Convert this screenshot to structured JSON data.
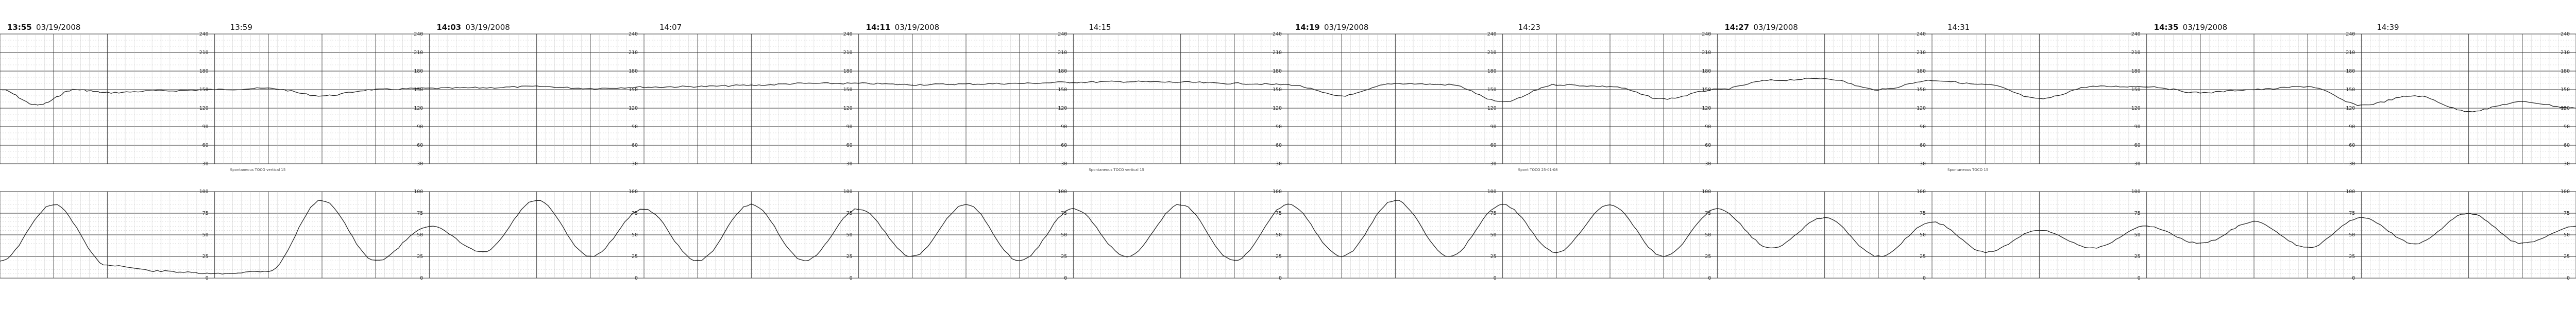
{
  "chart_data": [
    {
      "type": "line",
      "name_hint": "fetal-heart-rate",
      "ylim": [
        30,
        240
      ],
      "yticks": [
        "240",
        "210",
        "180",
        "150",
        "120",
        "90",
        "60",
        "30"
      ],
      "x_minutes": [
        0,
        0.7,
        1.4,
        2,
        3,
        4,
        5,
        6,
        7,
        8,
        9,
        10,
        11,
        12,
        13,
        14,
        15,
        16,
        17,
        18,
        19,
        20,
        21,
        22,
        23,
        24,
        25,
        26,
        27,
        28,
        29,
        30,
        31,
        32,
        33,
        34,
        35,
        36,
        37,
        38,
        39,
        40,
        41,
        42,
        43,
        44,
        45,
        46,
        47,
        48
      ],
      "values": [
        150,
        125,
        150,
        145,
        148,
        150,
        152,
        140,
        150,
        152,
        153,
        155,
        152,
        154,
        155,
        157,
        160,
        160,
        158,
        159,
        160,
        162,
        163,
        162,
        160,
        158,
        140,
        160,
        158,
        130,
        158,
        155,
        135,
        150,
        165,
        168,
        150,
        165,
        158,
        135,
        155,
        155,
        145,
        150,
        155,
        125,
        140,
        115,
        130,
        120
      ]
    },
    {
      "type": "line",
      "name_hint": "uterine-activity",
      "ylim": [
        0,
        100
      ],
      "yticks": [
        "100",
        "75",
        "50",
        "25",
        "0"
      ],
      "x_minutes": [
        0,
        1,
        2,
        3,
        4,
        5,
        6,
        7,
        8,
        9,
        10,
        11,
        12,
        13,
        14,
        15,
        16,
        17,
        18,
        19,
        20,
        21,
        22,
        23,
        24,
        25,
        26,
        27,
        28,
        29,
        30,
        31,
        32,
        33,
        34,
        35,
        36,
        37,
        38,
        39,
        40,
        41,
        42,
        43,
        44,
        45,
        46,
        47,
        48
      ],
      "values": [
        20,
        85,
        15,
        8,
        5,
        8,
        90,
        20,
        60,
        30,
        90,
        25,
        80,
        20,
        85,
        20,
        80,
        25,
        85,
        20,
        80,
        25,
        85,
        20,
        85,
        25,
        90,
        25,
        85,
        30,
        85,
        25,
        80,
        35,
        70,
        25,
        65,
        30,
        55,
        35,
        60,
        40,
        65,
        35,
        70,
        40,
        75,
        40,
        60
      ]
    }
  ],
  "segments": [
    {
      "time": "13:55",
      "date": "03/19/2008"
    },
    {
      "time": "14:03",
      "date": "03/19/2008"
    },
    {
      "time": "14:11",
      "date": "03/19/2008"
    },
    {
      "time": "14:19",
      "date": "03/19/2008"
    },
    {
      "time": "14:27",
      "date": "03/19/2008"
    },
    {
      "time": "14:35",
      "date": "03/19/2008"
    }
  ],
  "minute_labels": [
    "13:59",
    "14:07",
    "14:15",
    "14:23",
    "14:31",
    "14:39"
  ],
  "notes": [
    "Spontaneous TOCO vertical 15",
    "Spontaneous TOCO vertical 15",
    "Spont TOCO 25-01-08",
    "Spontaneous TOCO 15"
  ],
  "colors": {
    "trace": "#222222",
    "grid_major": "#333333",
    "grid_minor": "#bbbbbb",
    "paper": "#ffffff"
  }
}
